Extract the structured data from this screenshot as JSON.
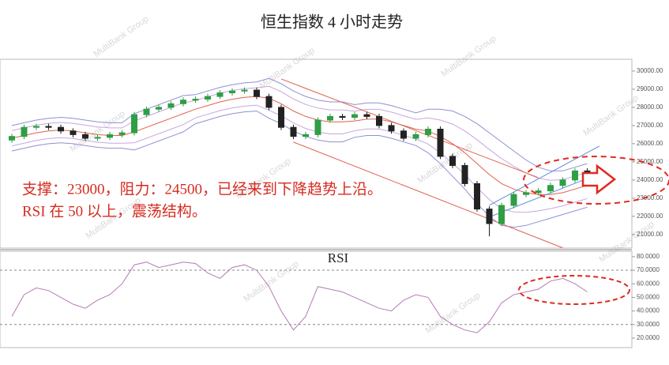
{
  "watermark": "MultiBank Group",
  "chart_data": [
    {
      "type": "candlestick",
      "title": "恒生指数 4 小时走势",
      "annotations": [
        "支撑：23000，阻力：24500，已经来到下降趋势上沿。",
        "RSI 在 50 以上，震荡结构。"
      ],
      "annotation_color": "#d62b20",
      "up_color": "#2f9e44",
      "down_color": "#222222",
      "open": [
        26200,
        26400,
        26900,
        26950,
        26900,
        26700,
        26500,
        26300,
        26350,
        26500,
        26600,
        27600,
        27900,
        28000,
        28200,
        28400,
        28450,
        28600,
        28800,
        28900,
        28950,
        28600,
        28000,
        26900,
        26400,
        26500,
        27300,
        27500,
        27450,
        27600,
        27500,
        27000,
        26700,
        26300,
        26500,
        26800,
        25300,
        24800,
        23800,
        22400,
        21600,
        22600,
        23200,
        23300,
        23400,
        23700,
        24000,
        24500
      ],
      "high": [
        26550,
        27050,
        27100,
        27100,
        27050,
        26850,
        26650,
        26500,
        26650,
        26750,
        27750,
        28050,
        28150,
        28350,
        28550,
        28600,
        28750,
        28950,
        29050,
        29100,
        29100,
        28750,
        28150,
        27050,
        26650,
        27450,
        27650,
        27650,
        27750,
        27750,
        27650,
        27150,
        26850,
        26650,
        26950,
        26950,
        25450,
        24950,
        23950,
        22550,
        22750,
        23350,
        23450,
        23550,
        23850,
        24150,
        24650,
        24650
      ],
      "low": [
        26050,
        26250,
        26750,
        26750,
        26550,
        26350,
        26150,
        26150,
        26200,
        26350,
        26450,
        27450,
        27750,
        27850,
        28050,
        28250,
        28300,
        28450,
        28650,
        28750,
        28450,
        27850,
        26750,
        26250,
        26250,
        26350,
        27150,
        27300,
        27300,
        27350,
        26850,
        26550,
        26150,
        26150,
        26350,
        25150,
        24650,
        23650,
        22250,
        20900,
        21450,
        22450,
        23050,
        23150,
        23250,
        23550,
        23850,
        24050
      ],
      "close": [
        26400,
        26900,
        26950,
        26900,
        26700,
        26500,
        26300,
        26350,
        26500,
        26600,
        27600,
        27900,
        28000,
        28200,
        28400,
        28450,
        28600,
        28800,
        28900,
        28950,
        28600,
        28000,
        26900,
        26400,
        26500,
        27300,
        27500,
        27450,
        27600,
        27500,
        27000,
        26700,
        26300,
        26500,
        26800,
        25300,
        24800,
        23800,
        22400,
        21600,
        22600,
        23200,
        23300,
        23400,
        23700,
        24000,
        24500,
        24200
      ],
      "lines": [
        {
          "color": "#8f8fd6",
          "values": [
            27000,
            27150,
            27300,
            27400,
            27450,
            27400,
            27300,
            27200,
            27150,
            27150,
            27650,
            27900,
            28150,
            28400,
            28650,
            28700,
            28900,
            29100,
            29250,
            29350,
            29400,
            29600,
            29300,
            28900,
            28600,
            28400,
            28300,
            28300,
            28150,
            28250,
            28250,
            28100,
            27900,
            27700,
            27900,
            27900,
            27800,
            27500,
            27100,
            26600,
            26100,
            25600,
            25100,
            24700,
            24500,
            24500,
            24700,
            24900
          ]
        },
        {
          "color": "#c9a6e0",
          "values": [
            26720,
            26870,
            27020,
            27120,
            27170,
            27120,
            27020,
            26920,
            26870,
            26870,
            27250,
            27500,
            27750,
            28000,
            28250,
            28380,
            28580,
            28780,
            28930,
            29030,
            29080,
            29160,
            28860,
            28460,
            28160,
            27960,
            27860,
            27860,
            27790,
            27890,
            27890,
            27740,
            27540,
            27340,
            27420,
            27300,
            27080,
            26700,
            26220,
            25680,
            25180,
            24760,
            24380,
            24100,
            23980,
            24020,
            24220,
            24420
          ]
        },
        {
          "color": "#e0614f",
          "values": [
            26300,
            26450,
            26600,
            26700,
            26750,
            26700,
            26600,
            26500,
            26450,
            26450,
            26650,
            26900,
            27150,
            27400,
            27650,
            27900,
            28100,
            28300,
            28450,
            28550,
            28600,
            28500,
            28200,
            27800,
            27500,
            27300,
            27200,
            27200,
            27250,
            27350,
            27350,
            27200,
            27000,
            26800,
            26700,
            26400,
            26000,
            25500,
            24900,
            24300,
            23800,
            23500,
            23300,
            23200,
            23200,
            23300,
            23500,
            23700
          ]
        },
        {
          "color": "#c9a6e0",
          "values": [
            25880,
            26030,
            26180,
            26280,
            26330,
            26280,
            26180,
            26080,
            26030,
            26030,
            26050,
            26300,
            26550,
            26800,
            27050,
            27420,
            27620,
            27820,
            27970,
            28070,
            28120,
            27840,
            27540,
            27140,
            26840,
            26640,
            26540,
            26540,
            26710,
            26810,
            26810,
            26660,
            26460,
            26260,
            25980,
            25500,
            24920,
            24300,
            23580,
            22920,
            22420,
            22240,
            22220,
            22300,
            22420,
            22580,
            22780,
            22980
          ]
        },
        {
          "color": "#8f8fd6",
          "values": [
            25600,
            25750,
            25900,
            26000,
            26050,
            26000,
            25900,
            25800,
            25750,
            25750,
            25650,
            25900,
            26150,
            26400,
            26650,
            27100,
            27300,
            27500,
            27650,
            27750,
            27800,
            27400,
            27100,
            26700,
            26400,
            26200,
            26100,
            26100,
            26350,
            26450,
            26450,
            26300,
            26100,
            25900,
            25500,
            24900,
            24200,
            23500,
            22700,
            22000,
            21500,
            21400,
            21500,
            21700,
            21900,
            22100,
            22300,
            22500
          ]
        }
      ],
      "trendlines": [
        {
          "color": "#e0614f",
          "from": [
            22,
            29565
          ],
          "to": [
            43,
            24130
          ]
        },
        {
          "color": "#e0614f",
          "from": [
            23,
            26087
          ],
          "to": [
            45,
            20260
          ]
        },
        {
          "color": "#5b8fd6",
          "from": [
            39,
            22609
          ],
          "to": [
            48,
            25870
          ]
        },
        {
          "color": "#5b8fd6",
          "from": [
            39,
            21957
          ],
          "to": [
            48,
            24348
          ]
        }
      ],
      "ylim": [
        20250,
        30650
      ],
      "yticks": [
        {
          "value": 21000,
          "label": "21000.00"
        },
        {
          "value": 22000,
          "label": "22000.00"
        },
        {
          "value": 23000,
          "label": "23000.00"
        },
        {
          "value": 24000,
          "label": "24000.00"
        },
        {
          "value": 25000,
          "label": "25000.00"
        },
        {
          "value": 26000,
          "label": "26000.00"
        },
        {
          "value": 27000,
          "label": "27000.00"
        },
        {
          "value": 28000,
          "label": "28000.00"
        },
        {
          "value": 29000,
          "label": "29000.00"
        },
        {
          "value": 30000,
          "label": "30000.00"
        }
      ]
    },
    {
      "type": "line",
      "title": "RSI",
      "color": "#b57ab5",
      "values": [
        36,
        52,
        57,
        55,
        50,
        45,
        42,
        48,
        52,
        60,
        74,
        76,
        72,
        74,
        76,
        75,
        68,
        64,
        72,
        74,
        70,
        58,
        40,
        26,
        36,
        58,
        56,
        54,
        50,
        46,
        42,
        40,
        48,
        52,
        50,
        36,
        30,
        26,
        24,
        32,
        46,
        52,
        54,
        56,
        62,
        64,
        60,
        54
      ],
      "levels": [
        70,
        30
      ],
      "ylim": [
        13,
        84
      ],
      "yticks": [
        {
          "value": 20,
          "label": "20.0000"
        },
        {
          "value": 30,
          "label": "30.0000"
        },
        {
          "value": 40,
          "label": "40.0000"
        },
        {
          "value": 50,
          "label": "50.0000"
        },
        {
          "value": 60,
          "label": "60.0000"
        },
        {
          "value": 70,
          "label": "70.0000"
        },
        {
          "value": 80,
          "label": "80.0000"
        }
      ]
    }
  ]
}
